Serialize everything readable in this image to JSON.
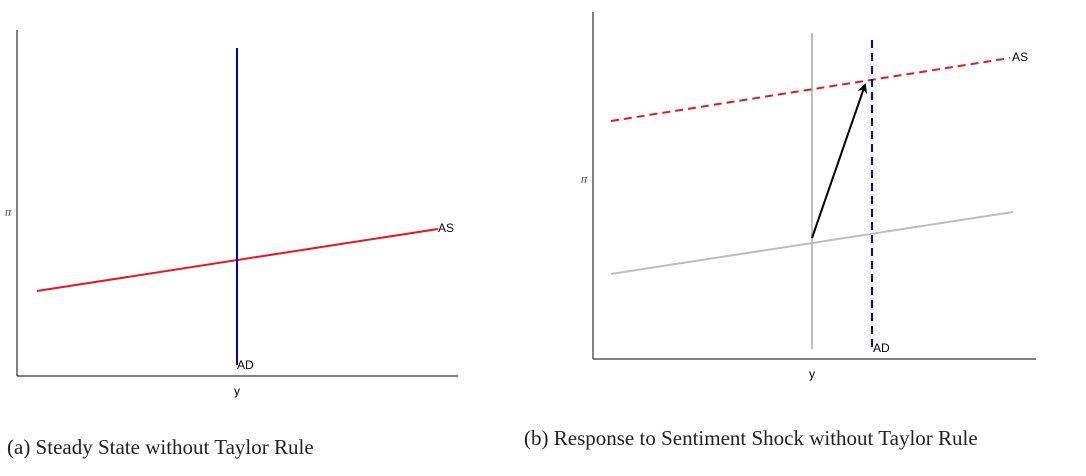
{
  "panels": [
    {
      "y_label": "π",
      "x_label": "y",
      "as_label": "AS",
      "ad_label": "AD",
      "caption": "(a) Steady State without Taylor Rule"
    },
    {
      "y_label": "π",
      "x_label": "y",
      "as_label": "AS",
      "ad_label": "AD",
      "caption": "(b) Response to Sentiment Shock without Taylor Rule"
    }
  ]
}
